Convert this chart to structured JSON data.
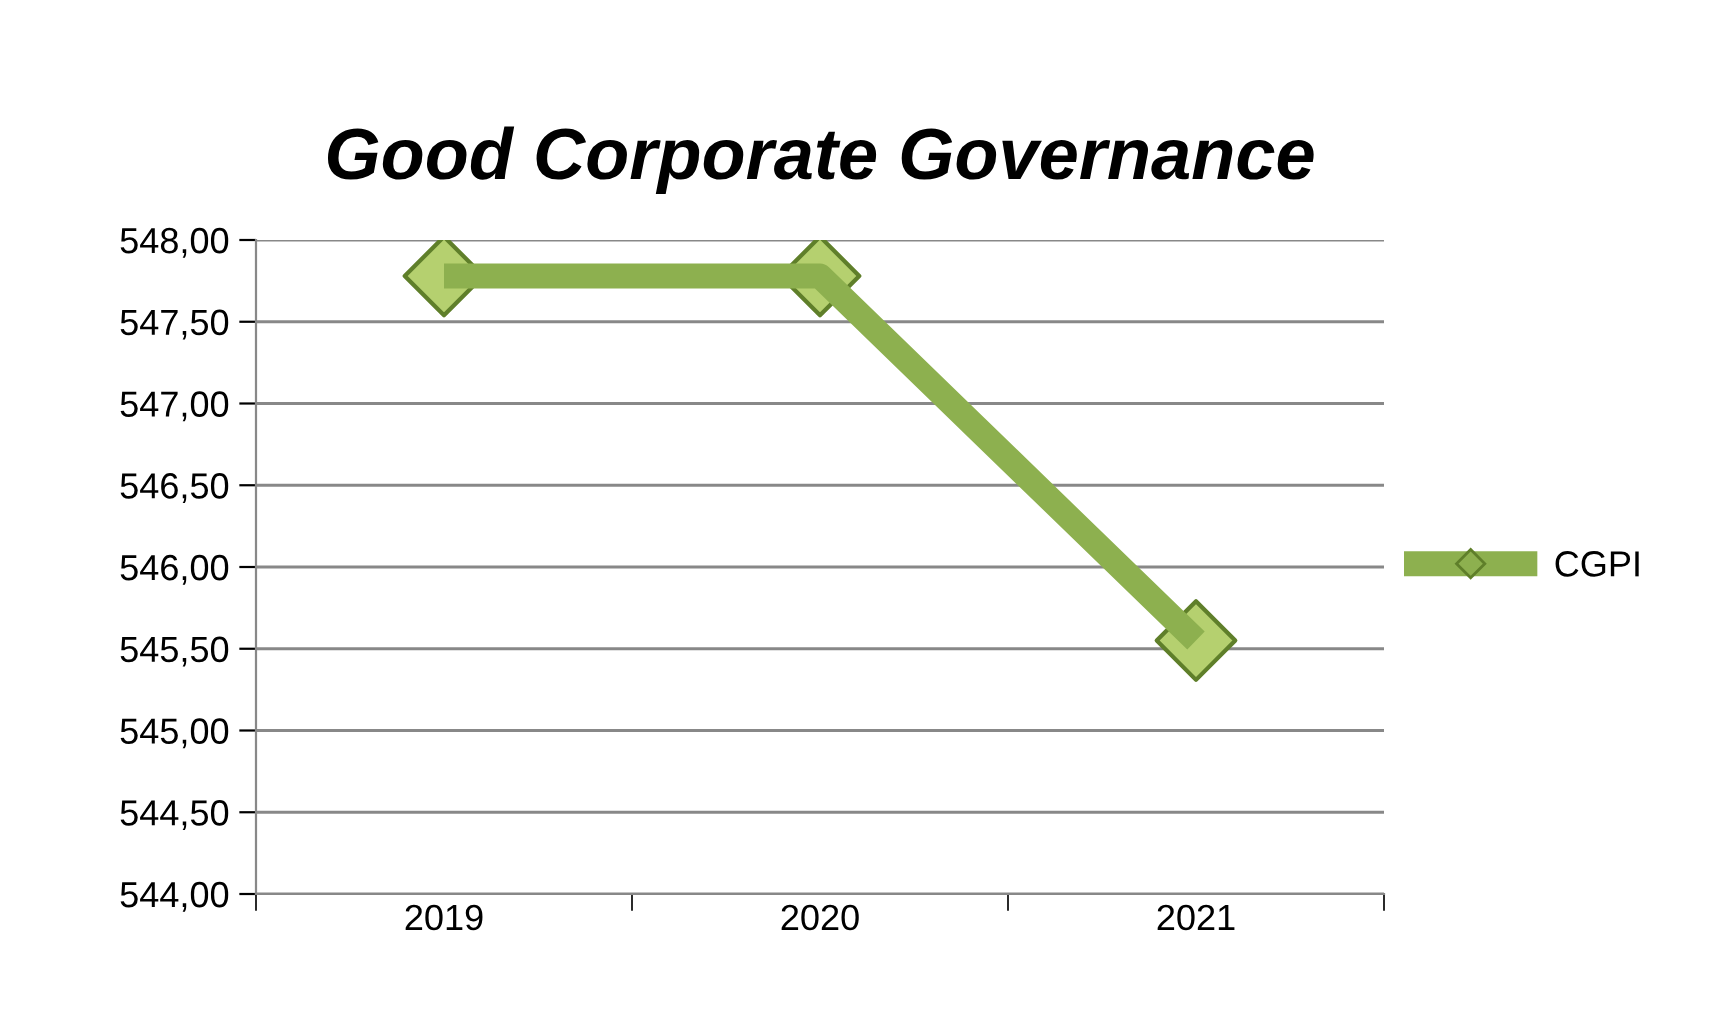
{
  "chart_data": {
    "type": "line",
    "title": "Good Corporate Governance",
    "categories": [
      "2019",
      "2020",
      "2021"
    ],
    "series": [
      {
        "name": "CGPI",
        "color": "#8db04f",
        "values": [
          547.78,
          547.78,
          545.55
        ]
      }
    ],
    "ylim": [
      544,
      548
    ],
    "yticks": [
      {
        "value": 544,
        "label": "544,00"
      },
      {
        "value": 544.5,
        "label": "544,50"
      },
      {
        "value": 545,
        "label": "545,00"
      },
      {
        "value": 545.5,
        "label": "545,50"
      },
      {
        "value": 546,
        "label": "546,00"
      },
      {
        "value": 546.5,
        "label": "546,50"
      },
      {
        "value": 547,
        "label": "547,00"
      },
      {
        "value": 547.5,
        "label": "547,50"
      },
      {
        "value": 548,
        "label": "548,00"
      }
    ],
    "grid": "y",
    "legend": "right",
    "marker": "diamond",
    "line_style": "solid"
  }
}
